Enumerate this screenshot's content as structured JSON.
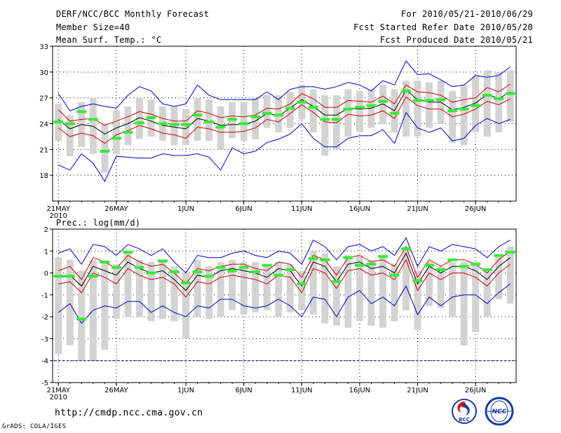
{
  "header": {
    "title": "DERF/NCC/BCC Monthly Forecast",
    "member_size": "Member Size=40",
    "period": "For 2010/05/21-2010/06/29",
    "started": "Fcst Started Refer Date 2010/05/20",
    "produced": "Fcst Produced Date 2010/05/21"
  },
  "footer": {
    "url": "http://cmdp.ncc.cma.gov.cn",
    "credit": "GrADS: COLA/IGES",
    "logo_left_text": "BCC",
    "logo_right_text": "NCC"
  },
  "colors": {
    "mean": "#000000",
    "spread": "#d00000",
    "extreme": "#0000cc",
    "box": "#d3d3d3",
    "obs": "#33ee33",
    "grid": "#000000"
  },
  "chart_data": [
    {
      "type": "line",
      "title": "Mean Surf. Temp.: °C",
      "ylim": [
        15,
        33
      ],
      "yticks": [
        18,
        21,
        24,
        27,
        30,
        33
      ],
      "xtick_labels": [
        "21MAY",
        "26MAY",
        "1JUN",
        "6JUN",
        "11JUN",
        "16JUN",
        "21JUN",
        "26JUN"
      ],
      "xtick_days": [
        0,
        5,
        11,
        16,
        21,
        26,
        31,
        36
      ],
      "year_label": "2010",
      "days": 40,
      "series": [
        {
          "name": "ensemble max",
          "values": [
            27.5,
            25.5,
            26,
            26.3,
            26,
            25.8,
            27.3,
            28.3,
            27.8,
            26.3,
            26,
            26.3,
            28.5,
            27.3,
            26.8,
            26.8,
            26.8,
            26.8,
            27.7,
            26.8,
            28,
            28.3,
            28.3,
            28,
            28.3,
            28.8,
            28.5,
            27.8,
            29,
            28.5,
            31.3,
            29.7,
            29.8,
            29.1,
            28.3,
            28.5,
            29.6,
            29.4,
            29.6,
            30.6
          ]
        },
        {
          "name": "spread upper",
          "values": [
            25.6,
            24.3,
            24.5,
            24.6,
            23.8,
            24.3,
            24.8,
            25.4,
            25.1,
            24.6,
            24.3,
            24.3,
            25.5,
            25.2,
            24.7,
            24.9,
            24.8,
            25,
            25.8,
            25.7,
            26.3,
            27.5,
            26.9,
            25.9,
            25.9,
            26.7,
            26.6,
            26.5,
            27.2,
            26.3,
            28.5,
            27.7,
            27.6,
            27.3,
            26.5,
            26.8,
            27,
            28.2,
            27.7,
            28.6
          ]
        },
        {
          "name": "ensemble mean",
          "values": [
            24.5,
            23.4,
            23.9,
            23.7,
            22.8,
            23.5,
            24,
            24.7,
            24.3,
            23.8,
            23.6,
            23.4,
            24.6,
            24.3,
            23.8,
            23.9,
            23.9,
            24.3,
            25.2,
            24.9,
            25.8,
            26.8,
            26,
            25,
            25,
            25.8,
            25.7,
            25.8,
            26.3,
            25.5,
            27.9,
            26.8,
            26.5,
            26.5,
            25.6,
            25.9,
            26.4,
            27.4,
            26.9,
            27.7
          ]
        },
        {
          "name": "spread lower",
          "values": [
            23.5,
            22.5,
            22.9,
            22.6,
            21.7,
            22.7,
            23.2,
            23.8,
            23.4,
            22.9,
            22.7,
            22.3,
            23.6,
            23.4,
            23,
            23,
            23.1,
            23.5,
            24.5,
            24.2,
            25.2,
            26.2,
            25.3,
            24.2,
            24.1,
            25.1,
            24.9,
            25,
            25.5,
            24.6,
            27.1,
            26.1,
            25.7,
            25.7,
            24.8,
            25.1,
            25.7,
            26.6,
            26.2,
            26.9
          ]
        },
        {
          "name": "ensemble min",
          "values": [
            19.2,
            18.6,
            20.5,
            19.4,
            17.3,
            20.2,
            20.1,
            20,
            20,
            20.5,
            20.3,
            20.3,
            20.5,
            20.1,
            18.6,
            21.2,
            20.5,
            20.8,
            21.8,
            22.2,
            22.8,
            24,
            22.3,
            21.3,
            21.3,
            22.3,
            22.6,
            22.6,
            23.3,
            21.7,
            25.3,
            23.5,
            23,
            23.5,
            22,
            22.3,
            23.8,
            24.6,
            24,
            24.5
          ]
        }
      ],
      "boxes": [
        [
          22,
          26.3
        ],
        [
          20.2,
          25
        ],
        [
          21.3,
          26.5
        ],
        [
          20.5,
          27
        ],
        [
          18.3,
          24
        ],
        [
          20.5,
          25.5
        ],
        [
          21.5,
          26
        ],
        [
          22.2,
          27
        ],
        [
          22.5,
          26.8
        ],
        [
          22,
          26
        ],
        [
          21.5,
          26
        ],
        [
          21.5,
          25.7
        ],
        [
          22,
          27
        ],
        [
          22,
          26.8
        ],
        [
          21,
          26
        ],
        [
          22.3,
          26.5
        ],
        [
          22,
          26.5
        ],
        [
          22.2,
          27
        ],
        [
          23.5,
          27.3
        ],
        [
          23,
          27.3
        ],
        [
          23.5,
          27.7
        ],
        [
          24.5,
          28.5
        ],
        [
          23,
          28
        ],
        [
          20.3,
          27.3
        ],
        [
          21,
          27.3
        ],
        [
          22.5,
          28
        ],
        [
          23,
          27.8
        ],
        [
          23.5,
          28
        ],
        [
          24,
          28.5
        ],
        [
          23,
          28
        ],
        [
          22.5,
          29
        ],
        [
          22.5,
          29
        ],
        [
          23.5,
          28.8
        ],
        [
          24,
          29
        ],
        [
          21.8,
          27.8
        ],
        [
          21.5,
          28.5
        ],
        [
          23,
          29.5
        ],
        [
          22.5,
          30.2
        ],
        [
          23,
          30
        ],
        [
          24.2,
          30.2
        ]
      ],
      "obs": [
        24.2,
        24,
        25.4,
        24.5,
        20.8,
        22.3,
        23,
        24.1,
        24.7,
        24,
        23.9,
        23.9,
        25,
        24.2,
        23.6,
        24.5,
        24,
        24.8,
        25.2,
        25,
        25.8,
        26.5,
        25.9,
        24.5,
        24.5,
        25.7,
        25.9,
        26.1,
        26.6,
        25.2,
        27.8,
        26.7,
        26.7,
        26.8,
        25.5,
        25.7,
        26.1,
        27.3,
        26.9,
        27.5
      ]
    },
    {
      "type": "line",
      "title": "Prec.: log(mm/d)",
      "ylim": [
        -5,
        2
      ],
      "yticks": [
        -5,
        -4,
        -3,
        -2,
        -1,
        0,
        1,
        2
      ],
      "xtick_labels": [
        "21MAY",
        "26MAY",
        "1JUN",
        "6JUN",
        "11JUN",
        "16JUN",
        "21JUN",
        "26JUN"
      ],
      "xtick_days": [
        0,
        5,
        11,
        16,
        21,
        26,
        31,
        36
      ],
      "year_label": "2010",
      "days": 40,
      "reference_line": -4,
      "series": [
        {
          "name": "ensemble max",
          "values": [
            0.9,
            1.1,
            0.4,
            1.3,
            1.2,
            0.8,
            1.3,
            1.1,
            0.8,
            1.1,
            0.5,
            0,
            0.8,
            0.7,
            0.7,
            0.9,
            1,
            0.8,
            0.7,
            1,
            0.9,
            0.4,
            1.5,
            1.2,
            0.6,
            1.2,
            1.3,
            1,
            1.2,
            0.8,
            1.6,
            0.3,
            1.2,
            1,
            1.3,
            1.2,
            1.1,
            0.7,
            1.2,
            1.5
          ]
        },
        {
          "name": "spread upper",
          "values": [
            0.1,
            0.3,
            -0.3,
            0.7,
            0.5,
            0.2,
            0.8,
            0.5,
            0.3,
            0.4,
            0,
            -0.5,
            0.2,
            0.1,
            0.3,
            0.4,
            0.4,
            0.2,
            0.1,
            0.5,
            0.4,
            -0.2,
            0.8,
            0.6,
            -0.1,
            0.7,
            0.8,
            0.5,
            0.6,
            0.3,
            1.2,
            -0.2,
            0.6,
            0.3,
            0.6,
            0.6,
            0.4,
            0,
            0.6,
            1
          ]
        },
        {
          "name": "ensemble mean",
          "values": [
            -0.2,
            -0.1,
            -0.6,
            0.3,
            0.1,
            -0.1,
            0.5,
            0.2,
            0,
            0.1,
            -0.3,
            -0.8,
            -0.1,
            -0.2,
            0.1,
            0.2,
            0.1,
            0,
            -0.2,
            0.2,
            0.1,
            -0.6,
            0.5,
            0.3,
            -0.4,
            0.4,
            0.5,
            0.2,
            0.3,
            0,
            0.9,
            -0.5,
            0.3,
            0,
            0.3,
            0.3,
            0.1,
            -0.3,
            0.3,
            0.7
          ]
        },
        {
          "name": "spread lower",
          "values": [
            -0.5,
            -0.4,
            -0.9,
            0,
            -0.2,
            -0.5,
            0.2,
            -0.1,
            -0.3,
            -0.2,
            -0.5,
            -1.1,
            -0.4,
            -0.5,
            -0.2,
            -0.1,
            -0.2,
            -0.3,
            -0.5,
            -0.1,
            -0.2,
            -0.9,
            0.2,
            0,
            -0.7,
            0.1,
            0.2,
            -0.1,
            0,
            -0.3,
            0.6,
            -0.8,
            0,
            -0.3,
            0,
            0,
            -0.2,
            -0.6,
            0,
            0.4
          ]
        },
        {
          "name": "ensemble min",
          "values": [
            -1.8,
            -1.4,
            -2.3,
            -1.7,
            -1.5,
            -1.6,
            -1.3,
            -1.3,
            -1.8,
            -1.5,
            -1.8,
            -2,
            -1.5,
            -1.6,
            -1.2,
            -1.2,
            -1.5,
            -1.6,
            -1.5,
            -1.2,
            -1.5,
            -2,
            -1.1,
            -1.2,
            -2,
            -1.1,
            -0.8,
            -1.4,
            -1.1,
            -1.5,
            -0.6,
            -1.9,
            -1.1,
            -1.5,
            -1.1,
            -1,
            -1,
            -1.4,
            -0.9,
            -0.5
          ]
        }
      ],
      "boxes": [
        [
          -3.7,
          0.7
        ],
        [
          -3.3,
          0.6
        ],
        [
          -4,
          0.1
        ],
        [
          -4,
          0.6
        ],
        [
          -3.5,
          0.5
        ],
        [
          -2.1,
          0.4
        ],
        [
          -2,
          0.9
        ],
        [
          -2,
          0.6
        ],
        [
          -2.2,
          0.5
        ],
        [
          -2.1,
          0.6
        ],
        [
          -2.2,
          0.3
        ],
        [
          -3,
          0
        ],
        [
          -2,
          0.6
        ],
        [
          -2.1,
          0.3
        ],
        [
          -2,
          0.5
        ],
        [
          -1.7,
          0.6
        ],
        [
          -1.9,
          0.5
        ],
        [
          -1.8,
          0.5
        ],
        [
          -1.7,
          0.3
        ],
        [
          -2,
          0.5
        ],
        [
          -1.8,
          0.4
        ],
        [
          -1.7,
          0.1
        ],
        [
          -1.9,
          1
        ],
        [
          -2.3,
          0.9
        ],
        [
          -2.4,
          0.3
        ],
        [
          -2.5,
          0.8
        ],
        [
          -2.2,
          0.8
        ],
        [
          -2.4,
          0.6
        ],
        [
          -2.5,
          0.7
        ],
        [
          -2.2,
          0.4
        ],
        [
          -1.7,
          1.2
        ],
        [
          -2.6,
          0.1
        ],
        [
          -1.5,
          0.5
        ],
        [
          -1.6,
          0.3
        ],
        [
          -2,
          0.5
        ],
        [
          -3.3,
          0.5
        ],
        [
          -2.7,
          0.5
        ],
        [
          -2,
          0.2
        ],
        [
          -1.2,
          0.8
        ],
        [
          -1.4,
          1.2
        ]
      ],
      "obs": [
        -0.15,
        -0.15,
        -2.1,
        -0.15,
        0.5,
        0.25,
        0.95,
        0.25,
        0,
        0.55,
        0.05,
        -0.45,
        0.05,
        -0.15,
        0.25,
        0.1,
        0.25,
        0.05,
        0.35,
        -0.1,
        0.15,
        -0.5,
        0.65,
        0.6,
        -0.4,
        0.7,
        0.35,
        0.4,
        0.75,
        -0.1,
        1.1,
        -0.35,
        0.35,
        0.15,
        0.6,
        0.3,
        0.4,
        0.15,
        0.8,
        0.95
      ]
    }
  ]
}
